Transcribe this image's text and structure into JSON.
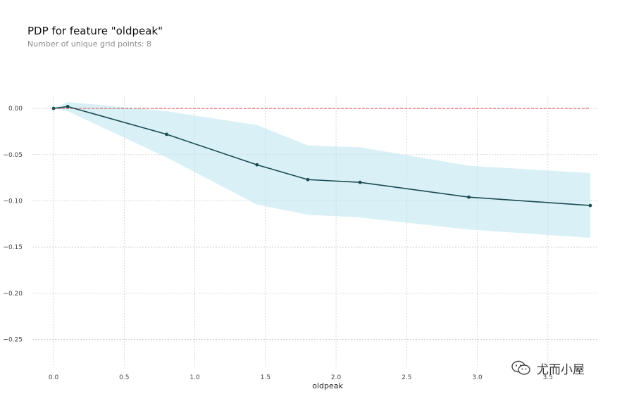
{
  "chart_data": {
    "type": "line",
    "title": "PDP for feature \"oldpeak\"",
    "subtitle": "Number of unique grid points: 8",
    "xlabel": "oldpeak",
    "ylabel": "",
    "xlim": [
      -0.15,
      3.85
    ],
    "ylim": [
      -0.28,
      0.013
    ],
    "xticks": [
      0.0,
      0.5,
      1.0,
      1.5,
      2.0,
      2.5,
      3.0,
      3.5
    ],
    "xtick_labels": [
      "0.0",
      "0.5",
      "1.0",
      "1.5",
      "2.0",
      "2.5",
      "3.0",
      "3.5"
    ],
    "yticks": [
      0.0,
      -0.05,
      -0.1,
      -0.15,
      -0.2,
      -0.25
    ],
    "ytick_labels": [
      "0.00",
      "−0.05",
      "−0.10",
      "−0.15",
      "−0.20",
      "−0.25"
    ],
    "grid": true,
    "series": [
      {
        "values": [
          {
            "x": 0.0,
            "y": 0.0
          },
          {
            "x": 0.1,
            "y": 0.002
          },
          {
            "x": 0.8,
            "y": -0.028
          },
          {
            "x": 1.44,
            "y": -0.061
          },
          {
            "x": 1.8,
            "y": -0.077
          },
          {
            "x": 2.17,
            "y": -0.08
          },
          {
            "x": 2.94,
            "y": -0.096
          },
          {
            "x": 3.8,
            "y": -0.105
          }
        ]
      }
    ],
    "band": {
      "x": [
        0.0,
        0.1,
        0.8,
        1.44,
        1.8,
        2.17,
        2.94,
        3.8
      ],
      "upper": [
        0.0,
        0.007,
        -0.003,
        -0.018,
        -0.04,
        -0.042,
        -0.062,
        -0.07
      ],
      "lower": [
        0.0,
        -0.003,
        -0.053,
        -0.104,
        -0.115,
        -0.118,
        -0.131,
        -0.14
      ]
    },
    "baseline": 0.0,
    "colors": {
      "line": "#1d4a52",
      "band": "#b9e6ef",
      "baseline": "#d9534f",
      "grid": "#cccccc"
    }
  },
  "watermark": {
    "icon": "wechat-icon",
    "text": "尤而小屋"
  }
}
